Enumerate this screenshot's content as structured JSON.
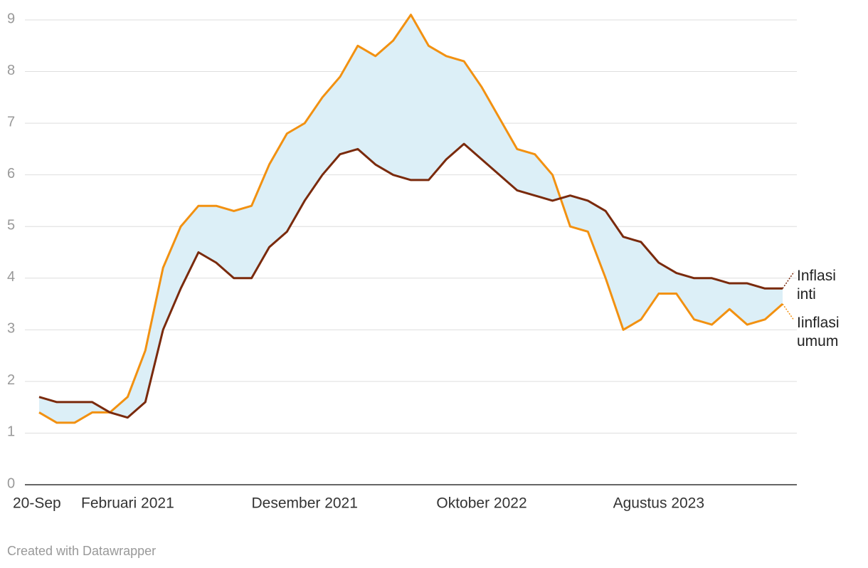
{
  "chart_data": {
    "type": "line",
    "categories": [
      "20-Sep",
      null,
      null,
      null,
      null,
      "Februari 2021",
      null,
      null,
      null,
      null,
      null,
      null,
      null,
      null,
      null,
      "Desember 2021",
      null,
      null,
      null,
      null,
      null,
      null,
      null,
      null,
      null,
      "Oktober 2022",
      null,
      null,
      null,
      null,
      null,
      null,
      null,
      null,
      null,
      "Agustus 2023",
      null,
      null,
      null,
      null,
      null,
      null,
      null
    ],
    "series": [
      {
        "name": "Inflasi inti",
        "color": "#7a2a0c",
        "values": [
          1.7,
          1.6,
          1.6,
          1.6,
          1.4,
          1.3,
          1.6,
          3.0,
          3.8,
          4.5,
          4.3,
          4.0,
          4.0,
          4.6,
          4.9,
          5.5,
          6.0,
          6.4,
          6.5,
          6.2,
          6.0,
          5.9,
          5.9,
          6.3,
          6.6,
          6.3,
          6.0,
          5.7,
          5.6,
          5.5,
          5.6,
          5.5,
          5.3,
          4.8,
          4.7,
          4.3,
          4.1,
          4.0,
          4.0,
          3.9,
          3.9,
          3.8,
          3.8
        ]
      },
      {
        "name": "Iinflasi umum",
        "color": "#f29111",
        "values": [
          1.4,
          1.2,
          1.2,
          1.4,
          1.4,
          1.7,
          2.6,
          4.2,
          5.0,
          5.4,
          5.4,
          5.3,
          5.4,
          6.2,
          6.8,
          7.0,
          7.5,
          7.9,
          8.5,
          8.3,
          8.6,
          9.1,
          8.5,
          8.3,
          8.2,
          7.7,
          7.1,
          6.5,
          6.4,
          6.0,
          5.0,
          4.9,
          4.0,
          3.0,
          3.2,
          3.7,
          3.7,
          3.2,
          3.1,
          3.4,
          3.1,
          3.2,
          3.5
        ]
      }
    ],
    "fill_between_color": "#dceff7",
    "ylim": [
      0,
      9
    ],
    "yticks": [
      0,
      1,
      2,
      3,
      4,
      5,
      6,
      7,
      8,
      9
    ],
    "grid": true,
    "footer": "Created with Datawrapper"
  }
}
